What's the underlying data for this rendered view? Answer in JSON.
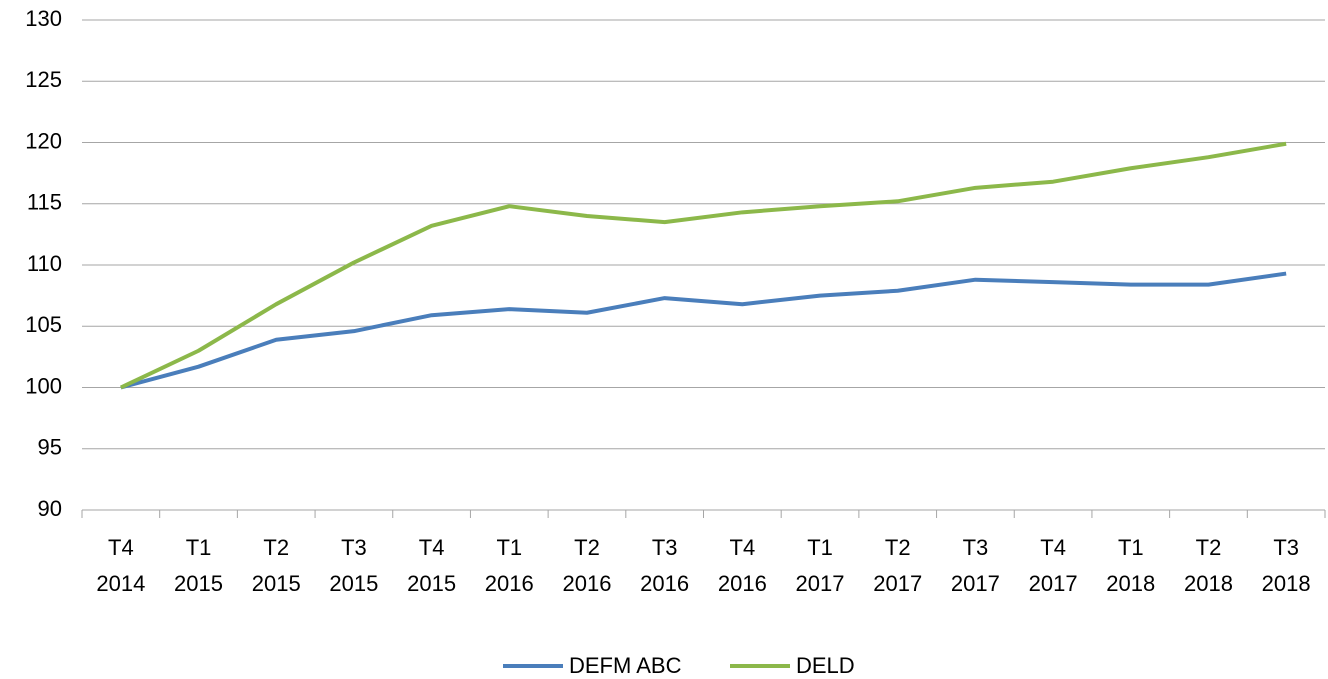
{
  "chart_data": {
    "type": "line",
    "categories": [
      "T4 2014",
      "T1 2015",
      "T2 2015",
      "T3 2015",
      "T4 2015",
      "T1 2016",
      "T2 2016",
      "T3 2016",
      "T4 2016",
      "T1 2017",
      "T2 2017",
      "T3 2017",
      "T4 2017",
      "T1 2018",
      "T2 2018",
      "T3 2018"
    ],
    "series": [
      {
        "name": "DEFM ABC",
        "color": "#4a7ebb",
        "values": [
          100,
          101.7,
          103.9,
          104.6,
          105.9,
          106.4,
          106.1,
          107.3,
          106.8,
          107.5,
          107.9,
          108.8,
          108.6,
          108.4,
          108.4,
          109.3
        ]
      },
      {
        "name": "DELD",
        "color": "#8cb84a",
        "values": [
          100,
          103.0,
          106.8,
          110.2,
          113.2,
          114.8,
          114.0,
          113.5,
          114.3,
          114.8,
          115.2,
          116.3,
          116.8,
          117.9,
          118.8,
          119.9
        ]
      }
    ],
    "ylim": [
      90,
      130
    ],
    "yticks": [
      90,
      95,
      100,
      105,
      110,
      115,
      120,
      125,
      130
    ],
    "grid": true,
    "legend": "bottom"
  }
}
